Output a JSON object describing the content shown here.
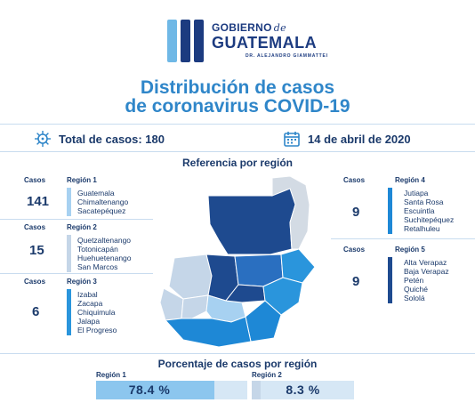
{
  "header": {
    "logo": {
      "line1": "GOBIERNO",
      "line1_de": "de",
      "line2": "GUATEMALA",
      "line3": "DR. ALEJANDRO GIAMMATTEI"
    },
    "title_line1": "Distribución de casos",
    "title_line2": "de coronavirus COVID-19"
  },
  "summary": {
    "total_label": "Total de casos: 180",
    "date_label": "14 de abril de 2020",
    "virus_icon": "virus-icon",
    "calendar_icon": "calendar-icon"
  },
  "reference_title": "Referencia por región",
  "column_labels": {
    "casos": "Casos"
  },
  "regions": [
    {
      "label": "Región 1",
      "cases": "141",
      "color": "#a7d1f1",
      "departments": [
        "Guatemala",
        "Chimaltenango",
        "Sacatepéquez"
      ]
    },
    {
      "label": "Región 2",
      "cases": "15",
      "color": "#c5d6e8",
      "departments": [
        "Quetzaltenango",
        "Totonicapán",
        "Huehuetenango",
        "San Marcos"
      ]
    },
    {
      "label": "Región 3",
      "cases": "6",
      "color": "#2a95dc",
      "departments": [
        "Izabal",
        "Zacapa",
        "Chiquimula",
        "Jalapa",
        "El Progreso"
      ]
    },
    {
      "label": "Región 4",
      "cases": "9",
      "color": "#1e88d6",
      "departments": [
        "Jutiapa",
        "Santa Rosa",
        "Escuintla",
        "Suchitepéquez",
        "Retalhuleu"
      ]
    },
    {
      "label": "Región 5",
      "cases": "9",
      "color": "#1e4a8f",
      "departments": [
        "Alta Verapaz",
        "Baja Verapaz",
        "Petén",
        "Quiché",
        "Sololá"
      ]
    }
  ],
  "percentages_title": "Porcentaje de casos por región",
  "percentages": [
    {
      "label": "Región 1",
      "value": "78.4 %",
      "fraction": 0.784,
      "color": "#8cc6ee"
    },
    {
      "label": "Región 2",
      "value": "8.3 %",
      "fraction": 0.083,
      "color": "#c5d6e8"
    }
  ],
  "colors": {
    "title_blue": "#2f86c9",
    "dark_navy": "#1b3a6b",
    "map_grey": "#d3dbe4"
  }
}
